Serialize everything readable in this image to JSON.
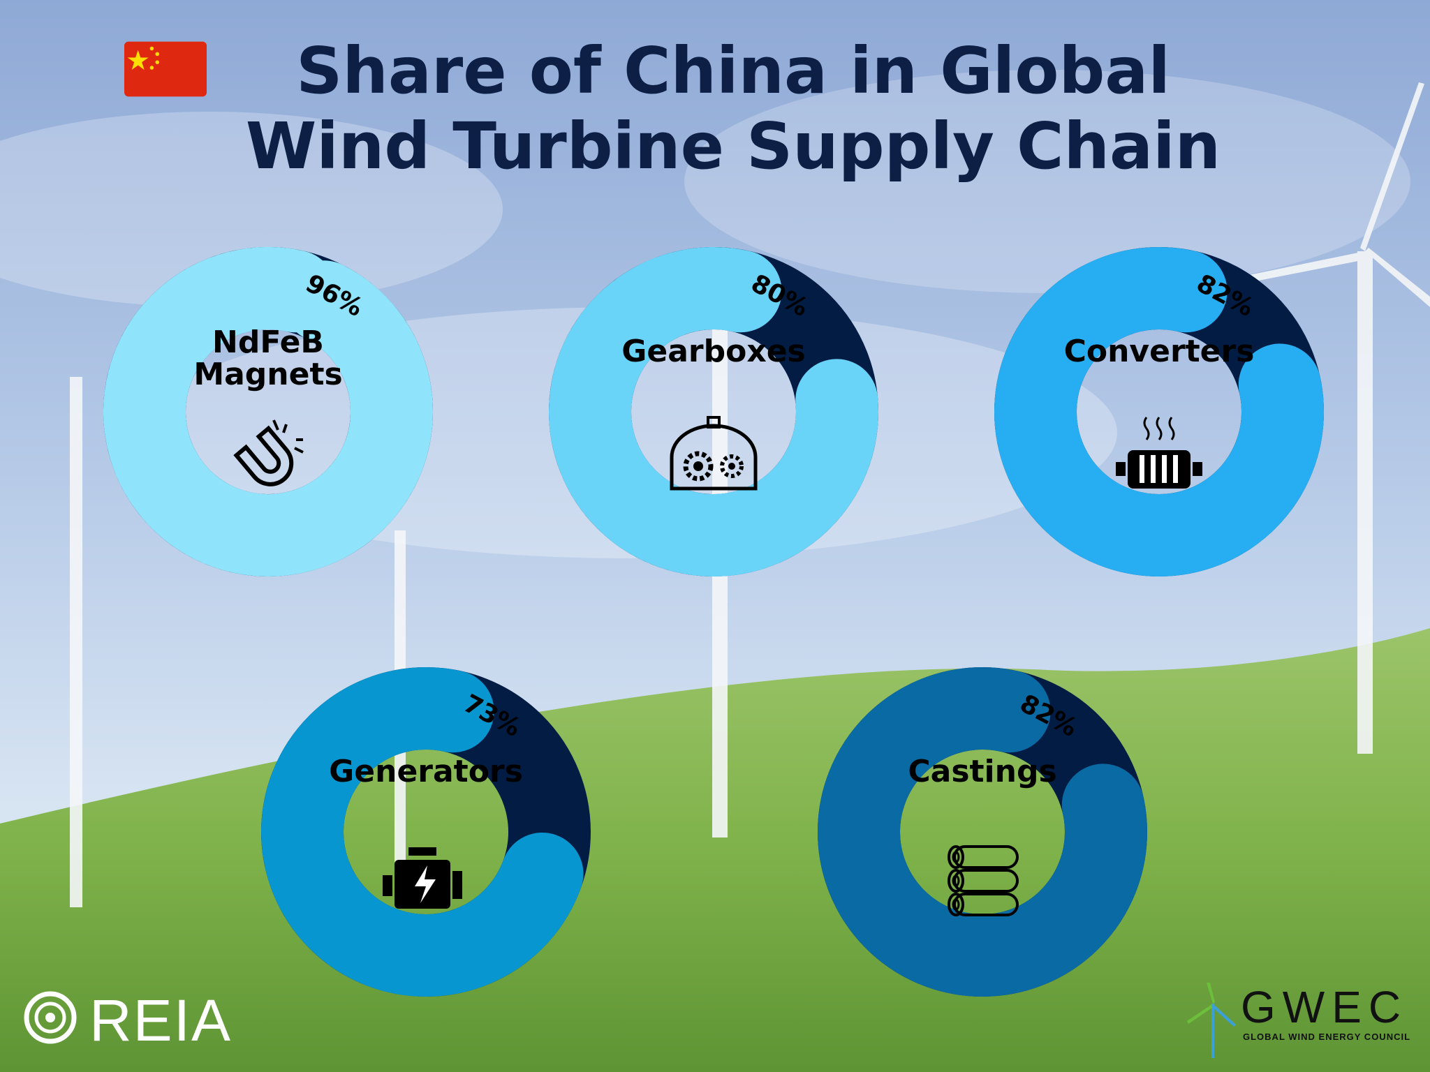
{
  "title": "Share of China in Global Wind Turbine Supply Chain",
  "colors": {
    "dark": "#031c44",
    "title": "#0d1f45"
  },
  "chart_data": [
    {
      "type": "pie",
      "label": "NdFeB Magnets",
      "label_lines": [
        "NdFeB",
        "Magnets"
      ],
      "value": 96,
      "value_label": "96%",
      "color": "#8fe3fa",
      "icon": "magnet-icon"
    },
    {
      "type": "pie",
      "label": "Gearboxes",
      "label_lines": [
        "Gearboxes"
      ],
      "value": 80,
      "value_label": "80%",
      "color": "#6ad4f8",
      "icon": "gearbox-icon"
    },
    {
      "type": "pie",
      "label": "Converters",
      "label_lines": [
        "Converters"
      ],
      "value": 82,
      "value_label": "82%",
      "color": "#27adf1",
      "icon": "converter-icon"
    },
    {
      "type": "pie",
      "label": "Generators",
      "label_lines": [
        "Generators"
      ],
      "value": 73,
      "value_label": "73%",
      "color": "#0796cf",
      "icon": "generator-icon"
    },
    {
      "type": "pie",
      "label": "Castings",
      "label_lines": [
        "Castings"
      ],
      "value": 82,
      "value_label": "82%",
      "color": "#0a6aa4",
      "icon": "castings-icon"
    }
  ],
  "logos": {
    "left": "REIA",
    "right": "GWEC",
    "right_subtitle": "GLOBAL WIND ENERGY COUNCIL"
  }
}
